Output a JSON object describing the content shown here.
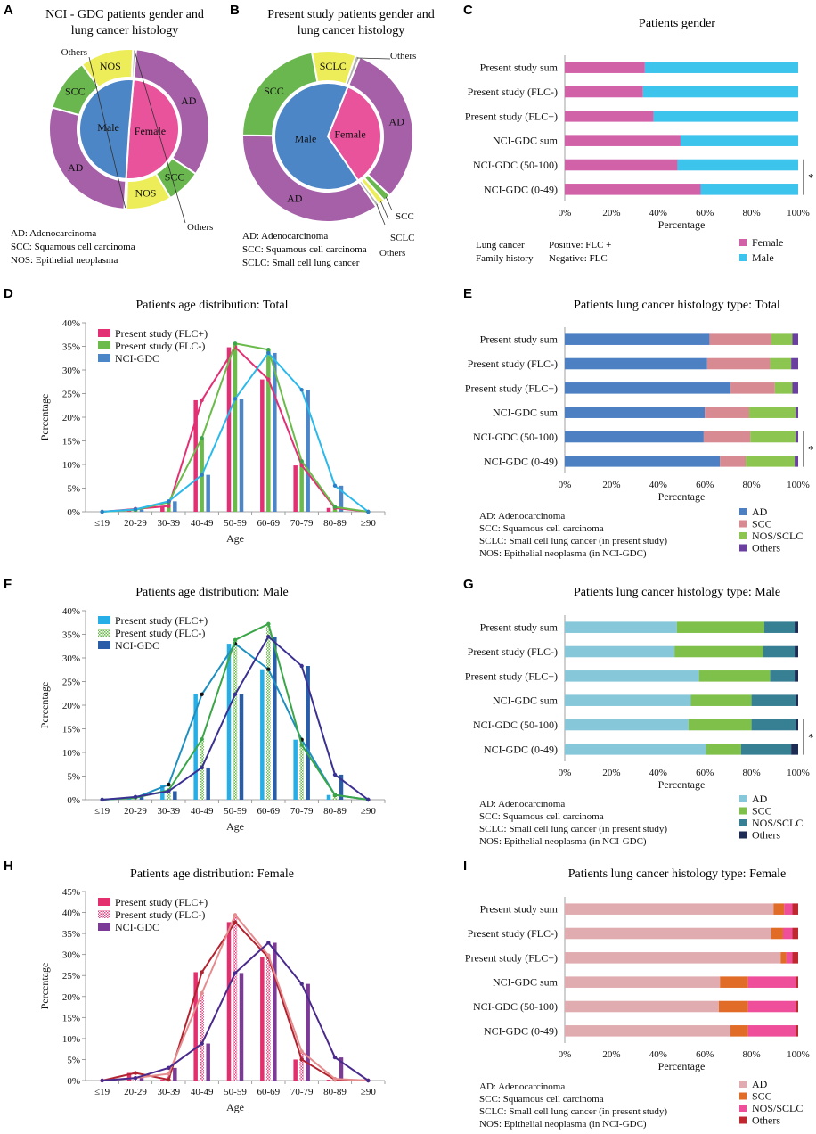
{
  "panels": {
    "A": {
      "letter": "A",
      "title": [
        "NCI - GDC patients gender and",
        "lung cancer histology"
      ],
      "inner": [
        {
          "label": "Female",
          "value": 49.6,
          "color": "#e8539b"
        },
        {
          "label": "Male",
          "value": 50.4,
          "color": "#4d86c6"
        }
      ],
      "outer": [
        {
          "label": "AD",
          "value": 33.0,
          "color": "#a560a8"
        },
        {
          "label": "SCC",
          "value": 7.0,
          "color": "#6ab64f"
        },
        {
          "label": "NOS",
          "value": 9.2,
          "color": "#eded5a"
        },
        {
          "label": "Others",
          "value": 0.4,
          "color": "#b0b0b0"
        },
        {
          "label": "AD",
          "value": 28.4,
          "color": "#a560a8"
        },
        {
          "label": "SCC",
          "value": 10.6,
          "color": "#6ab64f"
        },
        {
          "label": "NOS",
          "value": 10.8,
          "color": "#eded5a"
        },
        {
          "label": "Others",
          "value": 0.6,
          "color": "#b0b0b0"
        }
      ],
      "legend": [
        "AD: Adenocarcinoma",
        "SCC: Squamous cell carcinoma",
        "NOS: Epithelial neoplasma"
      ]
    },
    "B": {
      "letter": "B",
      "title": [
        "Present study patients gender and",
        "lung cancer histology"
      ],
      "inner": [
        {
          "label": "Female",
          "value": 34.3,
          "color": "#e8539b"
        },
        {
          "label": "Male",
          "value": 65.7,
          "color": "#4d86c6"
        }
      ],
      "outer": [
        {
          "label": "AD",
          "value": 31.0,
          "color": "#a560a8"
        },
        {
          "label": "SCC",
          "value": 1.4,
          "color": "#6ab64f"
        },
        {
          "label": "SCLC",
          "value": 1.2,
          "color": "#eded5a"
        },
        {
          "label": "Others",
          "value": 0.7,
          "color": "#b0b0b0"
        },
        {
          "label": "AD",
          "value": 34.8,
          "color": "#a560a8"
        },
        {
          "label": "SCC",
          "value": 21.8,
          "color": "#6ab64f"
        },
        {
          "label": "SCLC",
          "value": 8.3,
          "color": "#eded5a"
        },
        {
          "label": "Others",
          "value": 0.8,
          "color": "#b0b0b0"
        }
      ],
      "legend": [
        "AD: Adenocarcinoma",
        "SCC: Squamous cell carcinoma",
        "SCLC: Small cell lung cancer"
      ]
    },
    "C": {
      "letter": "C",
      "title": "Patients  gender"
    },
    "D": {
      "letter": "D",
      "title": "Patients  age distribution: Total"
    },
    "E": {
      "letter": "E",
      "title": "Patients lung cancer histology type: Total"
    },
    "F": {
      "letter": "F",
      "title": "Patients  age distribution: Male"
    },
    "G": {
      "letter": "G",
      "title": "Patients lung cancer histology type: Male"
    },
    "H": {
      "letter": "H",
      "title": "Patients  age distribution: Female"
    },
    "I": {
      "letter": "I",
      "title": "Patients lung cancer histology type: Female"
    }
  },
  "shared": {
    "bar_categories": [
      "Present study sum",
      "Present study (FLC-)",
      "Present study (FLC+)",
      "NCI-GDC sum",
      "NCI-GDC (50-100)",
      "NCI-GDC (0-49)"
    ],
    "pct_ticks": [
      "0%",
      "20%",
      "40%",
      "60%",
      "80%",
      "100%"
    ],
    "xlabel_pct": "Percentage",
    "age_categories": [
      "≤19",
      "20-29",
      "30-39",
      "40-49",
      "50-59",
      "60-69",
      "70-79",
      "80-89",
      "≥90"
    ],
    "age_xlabel": "Age",
    "age_ylabel": "Percentage",
    "significance": "*",
    "histo_notes": [
      "AD: Adenocarcinoma",
      "SCC: Squamous cell carcinoma",
      "SCLC: Small cell lung cancer (in present study)",
      "NOS: Epithelial neoplasma (in NCI-GDC)"
    ],
    "flc_notes": {
      "col1": [
        "Lung cancer",
        "Family history"
      ],
      "col2": [
        "Positive:   FLC +",
        "Negative:    FLC -"
      ]
    }
  },
  "chart_data": [
    {
      "panel": "C",
      "type": "bar",
      "orientation": "horizontal",
      "stacked": true,
      "title": "Patients  gender",
      "xlabel": "Percentage",
      "categories": [
        "Present study sum",
        "Present study (FLC-)",
        "Present study (FLC+)",
        "NCI-GDC sum",
        "NCI-GDC (50-100)",
        "NCI-GDC (0-49)"
      ],
      "series": [
        {
          "name": "Female",
          "color": "#d262a8",
          "values": [
            34.3,
            33.5,
            38.0,
            49.6,
            48.3,
            58.2
          ]
        },
        {
          "name": "Male",
          "color": "#3cc4ec",
          "values": [
            65.7,
            66.5,
            62.0,
            50.4,
            51.7,
            41.8
          ]
        }
      ],
      "xlim": [
        0,
        100
      ]
    },
    {
      "panel": "D",
      "type": "bar+line",
      "title": "Patients  age distribution: Total",
      "xlabel": "Age",
      "ylabel": "Percentage",
      "categories": [
        "≤19",
        "20-29",
        "30-39",
        "40-49",
        "50-59",
        "60-69",
        "70-79",
        "80-89",
        "≥90"
      ],
      "ylim": [
        0,
        40
      ],
      "yticks": [
        0,
        5,
        10,
        15,
        20,
        25,
        30,
        35,
        40
      ],
      "series": [
        {
          "name": "Present study (FLC+)",
          "color": "#e32f73",
          "pattern": "solid",
          "values": [
            0,
            0.6,
            1.2,
            23.6,
            34.8,
            28.0,
            9.8,
            0.8,
            0
          ]
        },
        {
          "name": "Present study (FLC-)",
          "color": "#6abb4a",
          "pattern": "solid",
          "values": [
            0,
            0.4,
            2.0,
            15.6,
            35.6,
            34.3,
            10.7,
            1.0,
            0
          ]
        },
        {
          "name": "NCI-GDC",
          "color": "#4d86c6",
          "pattern": "solid",
          "line_color": "#2bb9ec",
          "values": [
            0,
            0.5,
            2.2,
            7.8,
            23.9,
            33.6,
            25.8,
            5.5,
            0
          ]
        }
      ]
    },
    {
      "panel": "E",
      "type": "bar",
      "orientation": "horizontal",
      "stacked": true,
      "title": "Patients lung cancer histology type: Total",
      "xlabel": "Percentage",
      "categories": [
        "Present study sum",
        "Present study (FLC-)",
        "Present study (FLC+)",
        "NCI-GDC sum",
        "NCI-GDC (50-100)",
        "NCI-GDC (0-49)"
      ],
      "series": [
        {
          "name": "AD",
          "color": "#4d7fc3",
          "values": [
            62,
            61,
            71,
            60,
            59.5,
            66.5
          ]
        },
        {
          "name": "SCC",
          "color": "#d88a92",
          "values": [
            26.5,
            27,
            19,
            19,
            20,
            11
          ]
        },
        {
          "name": "NOS/SCLC",
          "color": "#8cc650",
          "values": [
            9,
            9,
            7.5,
            20,
            19.5,
            21
          ]
        },
        {
          "name": "Others",
          "color": "#6b3fa0",
          "values": [
            2.5,
            3,
            2.5,
            1,
            1,
            1.5
          ]
        }
      ],
      "xlim": [
        0,
        100
      ]
    },
    {
      "panel": "F",
      "type": "bar+line",
      "title": "Patients  age distribution: Male",
      "xlabel": "Age",
      "ylabel": "Percentage",
      "categories": [
        "≤19",
        "20-29",
        "30-39",
        "40-49",
        "50-59",
        "60-69",
        "70-79",
        "80-89",
        "≥90"
      ],
      "ylim": [
        0,
        40
      ],
      "yticks": [
        0,
        5,
        10,
        15,
        20,
        25,
        30,
        35,
        40
      ],
      "series": [
        {
          "name": "Present study (FLC+)",
          "color": "#27aee6",
          "pattern": "solid",
          "line_color": "#1f8fc0",
          "values": [
            0,
            0.4,
            3.2,
            22.3,
            33.0,
            27.6,
            12.7,
            1.0,
            0
          ]
        },
        {
          "name": "Present study (FLC-)",
          "color": "#6abb4a",
          "pattern": "checker",
          "line_color": "#3aa648",
          "values": [
            0,
            0.4,
            2.0,
            12.8,
            33.8,
            37.2,
            11.6,
            1.0,
            0
          ]
        },
        {
          "name": "NCI-GDC",
          "color": "#2a5da8",
          "pattern": "solid",
          "line_color": "#3a3192",
          "values": [
            0,
            0.6,
            1.8,
            6.8,
            22.3,
            34.5,
            28.3,
            5.3,
            0
          ]
        }
      ]
    },
    {
      "panel": "G",
      "type": "bar",
      "orientation": "horizontal",
      "stacked": true,
      "title": "Patients lung cancer histology type: Male",
      "xlabel": "Percentage",
      "categories": [
        "Present study sum",
        "Present study (FLC-)",
        "Present study (FLC+)",
        "NCI-GDC sum",
        "NCI-GDC (50-100)",
        "NCI-GDC (0-49)"
      ],
      "series": [
        {
          "name": "AD",
          "color": "#86c7d9",
          "values": [
            48,
            47,
            57.5,
            54,
            53,
            60.5
          ]
        },
        {
          "name": "SCC",
          "color": "#7ec049",
          "values": [
            37.5,
            38,
            30.5,
            26,
            27,
            15
          ]
        },
        {
          "name": "NOS/SCLC",
          "color": "#377f93",
          "values": [
            13,
            13.5,
            10.5,
            19,
            19,
            21.5
          ]
        },
        {
          "name": "Others",
          "color": "#1d2c55",
          "values": [
            1.5,
            1.5,
            1.5,
            1,
            1,
            3
          ]
        }
      ],
      "xlim": [
        0,
        100
      ]
    },
    {
      "panel": "H",
      "type": "bar+line",
      "title": "Patients  age distribution: Female",
      "xlabel": "Age",
      "ylabel": "Percentage",
      "categories": [
        "≤19",
        "20-29",
        "30-39",
        "40-49",
        "50-59",
        "60-69",
        "70-79",
        "80-89",
        "≥90"
      ],
      "ylim": [
        0,
        45
      ],
      "yticks": [
        0,
        5,
        10,
        15,
        20,
        25,
        30,
        35,
        40,
        45
      ],
      "series": [
        {
          "name": "Present study (FLC+)",
          "color": "#e32f6e",
          "pattern": "solid",
          "line_color": "#b2222f",
          "values": [
            0,
            1.8,
            0.2,
            25.8,
            37.7,
            29.3,
            5.0,
            0.2,
            0
          ]
        },
        {
          "name": "Present study (FLC-)",
          "color": "#e54a86",
          "pattern": "checker",
          "line_color": "#e58c8f",
          "values": [
            0,
            0.6,
            1.6,
            20.8,
            39.4,
            29.8,
            6.9,
            0.4,
            0
          ]
        },
        {
          "name": "NCI-GDC",
          "color": "#7b3a96",
          "pattern": "solid",
          "line_color": "#4a2a8c",
          "values": [
            0,
            0.6,
            3.0,
            8.8,
            25.6,
            32.8,
            23.0,
            5.5,
            0
          ]
        }
      ]
    },
    {
      "panel": "I",
      "type": "bar",
      "orientation": "horizontal",
      "stacked": true,
      "title": "Patients lung cancer histology type: Female",
      "xlabel": "Percentage",
      "categories": [
        "Present study sum",
        "Present study (FLC-)",
        "Present study (FLC+)",
        "NCI-GDC sum",
        "NCI-GDC (50-100)",
        "NCI-GDC (0-49)"
      ],
      "series": [
        {
          "name": "AD",
          "color": "#e0acb0",
          "values": [
            89.5,
            88.5,
            92.5,
            66.5,
            66,
            71
          ]
        },
        {
          "name": "SCC",
          "color": "#e06c28",
          "values": [
            4.5,
            5,
            2.5,
            12,
            12.5,
            7.5
          ]
        },
        {
          "name": "NOS/SCLC",
          "color": "#ee4e9a",
          "values": [
            3.5,
            4,
            2.5,
            20.5,
            20.5,
            20.5
          ]
        },
        {
          "name": "Others",
          "color": "#c0282f",
          "values": [
            2.5,
            2.5,
            2.5,
            1,
            1,
            1
          ]
        }
      ],
      "xlim": [
        0,
        100
      ]
    }
  ]
}
